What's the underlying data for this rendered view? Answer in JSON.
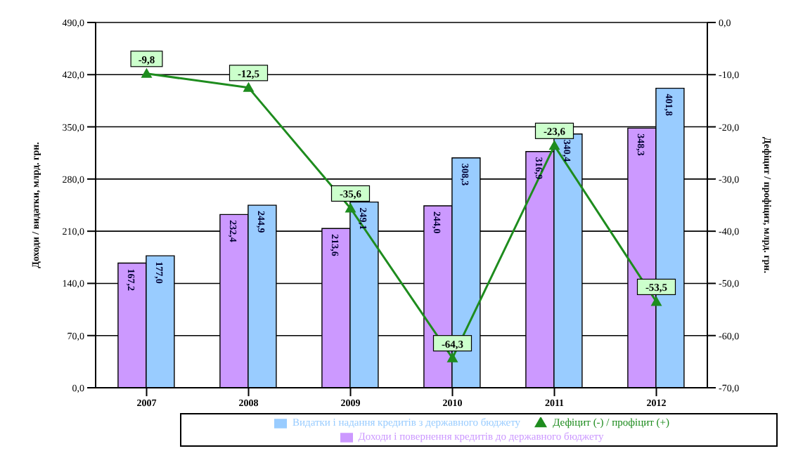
{
  "chart_data": {
    "type": "bar",
    "categories": [
      "2007",
      "2008",
      "2009",
      "2010",
      "2011",
      "2012"
    ],
    "ylabel": "Доходи / видатки, млрд. грн.",
    "y2label": "Дефіцит / профіцит, млрд. грн.",
    "ylim": [
      0,
      490
    ],
    "yticks": [
      {
        "value": 0,
        "label": "0,0"
      },
      {
        "value": 70,
        "label": "70,0"
      },
      {
        "value": 140,
        "label": "140,0"
      },
      {
        "value": 210,
        "label": "210,0"
      },
      {
        "value": 280,
        "label": "280,0"
      },
      {
        "value": 350,
        "label": "350,0"
      },
      {
        "value": 420,
        "label": "420,0"
      },
      {
        "value": 490,
        "label": "490,0"
      }
    ],
    "y2lim": [
      -70,
      0
    ],
    "y2ticks": [
      {
        "value": -70,
        "label": "-70,0"
      },
      {
        "value": -60,
        "label": "-60,0"
      },
      {
        "value": -50,
        "label": "-50,0"
      },
      {
        "value": -40,
        "label": "-40,0"
      },
      {
        "value": -30,
        "label": "-30,0"
      },
      {
        "value": -20,
        "label": "-20,0"
      },
      {
        "value": -10,
        "label": "-10,0"
      },
      {
        "value": 0,
        "label": "0,0"
      }
    ],
    "grid": "y",
    "legend": "bottom",
    "marker": "triangle",
    "line_style": "solid",
    "series": [
      {
        "name": "Доходи і повернення кредитів до державного бюджету",
        "color": "#cc99ff",
        "values": [
          167.2,
          232.4,
          213.6,
          244.0,
          316.9,
          348.3
        ],
        "value_labels": [
          "167,2",
          "232,4",
          "213,6",
          "244,0",
          "316,9",
          "348,3"
        ]
      },
      {
        "name": "Видатки і надання кредитів з державного бюджету",
        "color": "#99ccff",
        "values": [
          177.0,
          244.9,
          249.1,
          308.3,
          340.4,
          401.8
        ],
        "value_labels": [
          "177,0",
          "244,9",
          "249,1",
          "308,3",
          "340,4",
          "401,8"
        ]
      },
      {
        "name": "Дефіцит (-) / профіцит (+)",
        "type": "line",
        "axis": "y2",
        "color": "#1e8c1e",
        "values": [
          -9.8,
          -12.5,
          -35.6,
          -64.3,
          -23.6,
          -53.5
        ],
        "value_labels": [
          "-9,8",
          "-12,5",
          "-35,6",
          "-64,3",
          "-23,6",
          "-53,5"
        ]
      }
    ]
  }
}
